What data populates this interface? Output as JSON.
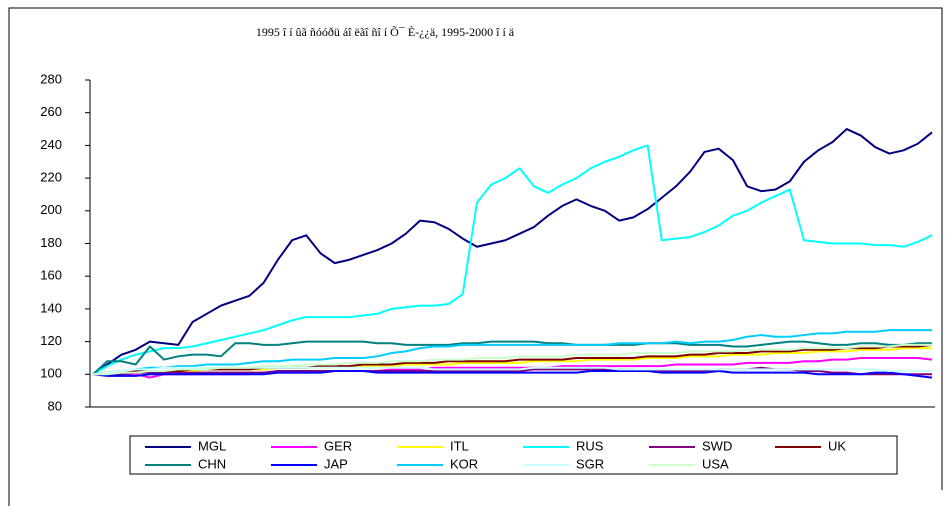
{
  "chart_data": {
    "type": "line",
    "title": "1995 î í ûã ñóóðü áî ëãî ñî í  Õ¯ È-¿¿ä, 1995-2000 î í ä",
    "categories": [
      null,
      null,
      null,
      null,
      null,
      null,
      null,
      null,
      null,
      null,
      null,
      null,
      null,
      null,
      null,
      null,
      null,
      null,
      null,
      null,
      null,
      null,
      null,
      null,
      null,
      null,
      null,
      null,
      null,
      null,
      null,
      null,
      null,
      null,
      null,
      null,
      null,
      null,
      null,
      null,
      null,
      null,
      null,
      null,
      null,
      null,
      null,
      null,
      null,
      null,
      null,
      null,
      null,
      null,
      null,
      null,
      null,
      null,
      null,
      null
    ],
    "ylim": [
      80,
      280
    ],
    "yticks": [
      80,
      100,
      120,
      140,
      160,
      180,
      200,
      220,
      240,
      260,
      280
    ],
    "grid": false,
    "legend": "bottom",
    "series": [
      {
        "name": "MGL",
        "color": "#000080",
        "values": [
          100,
          106,
          112,
          115,
          120,
          119,
          118,
          132,
          137,
          142,
          145,
          148,
          156,
          170,
          182,
          185,
          174,
          168,
          170,
          173,
          176,
          180,
          186,
          194,
          193,
          189,
          183,
          178,
          180,
          182,
          186,
          190,
          197,
          203,
          207,
          203,
          200,
          194,
          196,
          201,
          208,
          215,
          224,
          236,
          238,
          231,
          215,
          212,
          213,
          218,
          230,
          237,
          242,
          250,
          246,
          239,
          235,
          237,
          241,
          248
        ]
      },
      {
        "name": "GER",
        "color": "#ff00ff",
        "values": [
          100,
          100,
          100,
          100,
          98,
          100,
          100,
          100,
          100,
          100,
          100,
          100,
          101,
          101,
          101,
          101,
          101,
          102,
          102,
          102,
          102,
          103,
          103,
          103,
          104,
          104,
          104,
          104,
          104,
          104,
          104,
          104,
          104,
          105,
          105,
          105,
          105,
          105,
          105,
          105,
          105,
          106,
          106,
          106,
          106,
          106,
          107,
          107,
          107,
          107,
          108,
          108,
          109,
          109,
          110,
          110,
          110,
          110,
          110,
          109
        ]
      },
      {
        "name": "ITL",
        "color": "#ffff00",
        "values": [
          100,
          101,
          101,
          101,
          102,
          102,
          102,
          102,
          103,
          103,
          103,
          103,
          103,
          104,
          104,
          104,
          104,
          104,
          105,
          105,
          105,
          105,
          106,
          106,
          106,
          106,
          107,
          107,
          107,
          107,
          107,
          108,
          108,
          108,
          108,
          109,
          109,
          109,
          109,
          110,
          110,
          110,
          111,
          111,
          111,
          112,
          112,
          112,
          113,
          113,
          113,
          114,
          114,
          114,
          115,
          115,
          115,
          116,
          116,
          116
        ]
      },
      {
        "name": "RUS",
        "color": "#00ffff",
        "values": [
          100,
          105,
          109,
          112,
          114,
          116,
          116,
          117,
          119,
          121,
          123,
          125,
          127,
          130,
          133,
          135,
          135,
          135,
          135,
          136,
          137,
          140,
          141,
          142,
          142,
          143,
          149,
          205,
          216,
          220,
          226,
          215,
          211,
          216,
          220,
          226,
          230,
          233,
          237,
          240,
          182,
          183,
          184,
          187,
          191,
          197,
          200,
          205,
          209,
          213,
          182,
          181,
          180,
          180,
          180,
          179,
          179,
          178,
          181,
          185
        ]
      },
      {
        "name": "SWD",
        "color": "#800080",
        "values": [
          100,
          100,
          100,
          101,
          101,
          101,
          101,
          101,
          101,
          101,
          101,
          101,
          101,
          102,
          102,
          102,
          102,
          102,
          102,
          102,
          102,
          102,
          102,
          102,
          102,
          102,
          102,
          102,
          102,
          102,
          102,
          103,
          103,
          103,
          103,
          103,
          103,
          103,
          103,
          102,
          102,
          102,
          102,
          102,
          103,
          103,
          103,
          104,
          103,
          103,
          102,
          102,
          101,
          101,
          100,
          100,
          100,
          100,
          100,
          100
        ]
      },
      {
        "name": "UK",
        "color": "#800000",
        "values": [
          100,
          101,
          102,
          102,
          102,
          102,
          102,
          103,
          103,
          103,
          103,
          103,
          104,
          104,
          104,
          104,
          105,
          105,
          105,
          106,
          106,
          106,
          107,
          107,
          107,
          108,
          108,
          108,
          108,
          108,
          109,
          109,
          109,
          109,
          110,
          110,
          110,
          110,
          110,
          111,
          111,
          111,
          112,
          112,
          113,
          113,
          113,
          114,
          114,
          114,
          115,
          115,
          115,
          116,
          116,
          116,
          117,
          117,
          117,
          118
        ]
      },
      {
        "name": "CHN",
        "color": "#008080",
        "values": [
          100,
          108,
          108,
          106,
          117,
          109,
          111,
          112,
          112,
          111,
          119,
          119,
          118,
          118,
          119,
          120,
          120,
          120,
          120,
          120,
          119,
          119,
          118,
          118,
          118,
          118,
          119,
          119,
          120,
          120,
          120,
          120,
          119,
          119,
          118,
          118,
          118,
          118,
          118,
          119,
          119,
          119,
          118,
          118,
          118,
          117,
          117,
          118,
          119,
          120,
          120,
          119,
          118,
          118,
          119,
          119,
          118,
          118,
          119,
          119
        ]
      },
      {
        "name": "JAP",
        "color": "#0000ff",
        "values": [
          100,
          99,
          99,
          99,
          100,
          100,
          100,
          100,
          100,
          100,
          100,
          100,
          100,
          101,
          101,
          101,
          101,
          102,
          102,
          102,
          101,
          101,
          101,
          101,
          101,
          101,
          101,
          101,
          101,
          101,
          101,
          101,
          101,
          101,
          101,
          102,
          102,
          102,
          102,
          102,
          101,
          101,
          101,
          101,
          102,
          101,
          101,
          101,
          101,
          101,
          101,
          100,
          100,
          100,
          100,
          101,
          101,
          100,
          99,
          98
        ]
      },
      {
        "name": "KOR",
        "color": "#00ccff",
        "values": [
          100,
          101,
          102,
          103,
          104,
          104,
          105,
          105,
          106,
          106,
          106,
          107,
          108,
          108,
          109,
          109,
          109,
          110,
          110,
          110,
          111,
          113,
          114,
          116,
          117,
          117,
          118,
          118,
          118,
          118,
          118,
          118,
          118,
          118,
          118,
          118,
          118,
          119,
          119,
          119,
          119,
          120,
          119,
          120,
          120,
          121,
          123,
          124,
          123,
          123,
          124,
          125,
          125,
          126,
          126,
          126,
          127,
          127,
          127,
          127
        ]
      },
      {
        "name": "SGR",
        "color": "#ccffff",
        "values": [
          100,
          101,
          102,
          103,
          103,
          104,
          104,
          104,
          104,
          104,
          104,
          104,
          104,
          104,
          104,
          104,
          104,
          104,
          104,
          104,
          104,
          104,
          104,
          104,
          103,
          103,
          103,
          103,
          103,
          103,
          103,
          104,
          104,
          104,
          104,
          104,
          104,
          103,
          103,
          103,
          103,
          103,
          103,
          103,
          103,
          103,
          103,
          103,
          103,
          103,
          103,
          103,
          103,
          103,
          103,
          103,
          102,
          102,
          102,
          102
        ]
      },
      {
        "name": "USA",
        "color": "#ccffcc",
        "values": [
          100,
          100,
          101,
          101,
          102,
          102,
          103,
          103,
          103,
          104,
          104,
          104,
          105,
          105,
          105,
          106,
          106,
          106,
          107,
          107,
          107,
          108,
          108,
          108,
          109,
          109,
          109,
          110,
          110,
          110,
          111,
          111,
          111,
          111,
          112,
          112,
          112,
          112,
          113,
          113,
          113,
          113,
          114,
          114,
          114,
          114,
          115,
          115,
          115,
          115,
          116,
          116,
          116,
          116,
          117,
          117,
          117,
          118,
          118,
          118
        ]
      }
    ]
  }
}
